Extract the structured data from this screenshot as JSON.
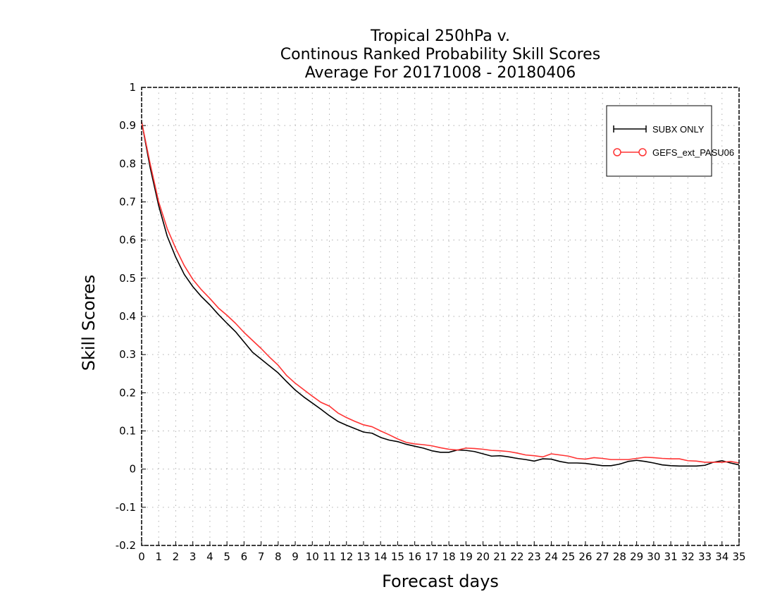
{
  "chart_data": {
    "type": "line",
    "title_lines": [
      "Tropical 250hPa v.",
      "Continous Ranked Probability Skill Scores",
      "Average For 20171008 - 20180406"
    ],
    "xlabel": "Forecast days",
    "ylabel": "Skill Scores",
    "xlim": [
      0,
      35
    ],
    "ylim": [
      -0.2,
      1
    ],
    "xticks": [
      "0",
      "1",
      "2",
      "3",
      "4",
      "5",
      "6",
      "7",
      "8",
      "9",
      "10",
      "11",
      "12",
      "13",
      "14",
      "15",
      "16",
      "17",
      "18",
      "19",
      "20",
      "21",
      "22",
      "23",
      "24",
      "25",
      "26",
      "27",
      "28",
      "29",
      "30",
      "31",
      "32",
      "33",
      "34",
      "35"
    ],
    "yticks": [
      "-0.2",
      "-0.1",
      "0",
      "0.1",
      "0.2",
      "0.3",
      "0.4",
      "0.5",
      "0.6",
      "0.7",
      "0.8",
      "0.9",
      "1"
    ],
    "grid": true,
    "legend_position": "top-right",
    "x": [
      0,
      0.5,
      1,
      1.5,
      2,
      2.5,
      3,
      3.5,
      4,
      4.5,
      5,
      5.5,
      6,
      6.5,
      7,
      7.5,
      8,
      8.5,
      9,
      9.5,
      10,
      10.5,
      11,
      11.5,
      12,
      12.5,
      13,
      13.5,
      14,
      14.5,
      15,
      15.5,
      16,
      16.5,
      17,
      17.5,
      18,
      18.5,
      19,
      19.5,
      20,
      20.5,
      21,
      21.5,
      22,
      22.5,
      23,
      23.5,
      24,
      24.5,
      25,
      25.5,
      26,
      26.5,
      27,
      27.5,
      28,
      28.5,
      29,
      29.5,
      30,
      30.5,
      31,
      31.5,
      32,
      32.5,
      33,
      33.5,
      34,
      34.5,
      35
    ],
    "series": [
      {
        "name": "SUBX ONLY",
        "color": "#000000",
        "marker": "plus",
        "values": [
          0.91,
          0.79,
          0.69,
          0.61,
          0.555,
          0.51,
          0.478,
          0.452,
          0.43,
          0.405,
          0.382,
          0.36,
          0.333,
          0.306,
          0.288,
          0.27,
          0.252,
          0.229,
          0.207,
          0.189,
          0.173,
          0.157,
          0.14,
          0.125,
          0.115,
          0.106,
          0.097,
          0.094,
          0.083,
          0.076,
          0.072,
          0.065,
          0.06,
          0.055,
          0.048,
          0.044,
          0.044,
          0.05,
          0.049,
          0.046,
          0.04,
          0.034,
          0.035,
          0.032,
          0.028,
          0.025,
          0.021,
          0.027,
          0.026,
          0.02,
          0.016,
          0.016,
          0.015,
          0.012,
          0.009,
          0.009,
          0.013,
          0.02,
          0.023,
          0.02,
          0.016,
          0.011,
          0.009,
          0.008,
          0.008,
          0.008,
          0.01,
          0.018,
          0.022,
          0.016,
          0.011
        ]
      },
      {
        "name": "GEFS_ext_PASU06",
        "color": "#ff3333",
        "marker": "circle",
        "values": [
          0.91,
          0.8,
          0.7,
          0.63,
          0.578,
          0.533,
          0.497,
          0.47,
          0.447,
          0.422,
          0.403,
          0.382,
          0.358,
          0.337,
          0.316,
          0.293,
          0.272,
          0.245,
          0.225,
          0.208,
          0.191,
          0.175,
          0.165,
          0.147,
          0.135,
          0.125,
          0.116,
          0.111,
          0.1,
          0.09,
          0.079,
          0.07,
          0.066,
          0.064,
          0.061,
          0.056,
          0.052,
          0.05,
          0.055,
          0.054,
          0.052,
          0.049,
          0.048,
          0.046,
          0.042,
          0.037,
          0.035,
          0.032,
          0.04,
          0.037,
          0.034,
          0.028,
          0.026,
          0.03,
          0.028,
          0.025,
          0.025,
          0.025,
          0.028,
          0.031,
          0.03,
          0.028,
          0.027,
          0.027,
          0.022,
          0.021,
          0.018,
          0.018,
          0.018,
          0.02,
          0.016
        ]
      }
    ]
  },
  "legend": {
    "items": [
      {
        "label": "SUBX ONLY"
      },
      {
        "label": "GEFS_ext_PASU06"
      }
    ]
  }
}
